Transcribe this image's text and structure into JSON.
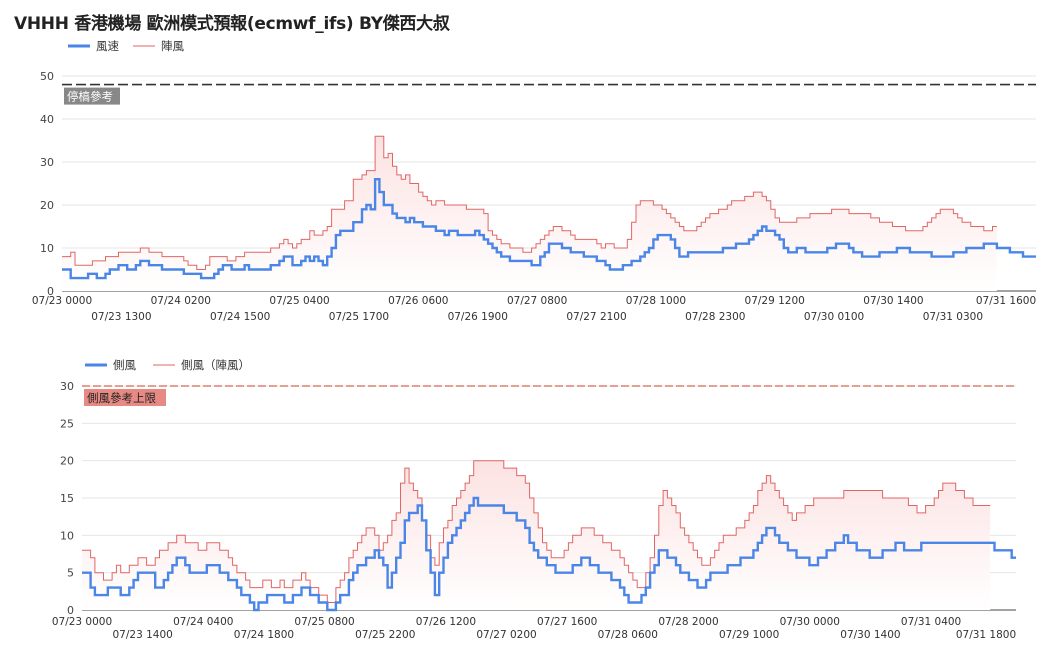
{
  "title": "VHHH 香港機場 歐洲模式預報(ecmwf_ifs)  BY傑西大叔",
  "colors": {
    "blue": "#4a86e8",
    "red": "#e06666",
    "fill": "#fce2e2",
    "dash": "#333333",
    "refLine": "#cc4125"
  },
  "chart_data": [
    {
      "type": "line",
      "legend": [
        "風速",
        "陣風"
      ],
      "ylim": [
        0,
        50
      ],
      "yticks": [
        0,
        10,
        20,
        30,
        40,
        50
      ],
      "xticks_row1": [
        "07/23 0000",
        "07/24 0200",
        "07/25 0400",
        "07/26 0600",
        "07/27 0800",
        "07/28 1000",
        "07/29 1200",
        "07/30 1400",
        "07/31 1600"
      ],
      "xticks_row2": [
        "07/23 1300",
        "07/24 1500",
        "07/25 1700",
        "07/26 1900",
        "07/27 2100",
        "07/28 2300",
        "07/30 0100",
        "07/31 0300"
      ],
      "reference": {
        "value": 48,
        "label": "停槁參考"
      },
      "series": [
        {
          "name": "風速",
          "style": "blue-step",
          "values": [
            5,
            5,
            3,
            3,
            3,
            3,
            4,
            4,
            3,
            3,
            4,
            5,
            5,
            6,
            6,
            5,
            5,
            6,
            7,
            7,
            6,
            6,
            6,
            5,
            5,
            5,
            5,
            5,
            4,
            4,
            4,
            4,
            3,
            3,
            3,
            4,
            5,
            6,
            6,
            5,
            5,
            5,
            6,
            5,
            5,
            5,
            5,
            5,
            6,
            6,
            7,
            8,
            8,
            6,
            6,
            7,
            8,
            7,
            8,
            7,
            6,
            8,
            10,
            13,
            14,
            14,
            14,
            16,
            16,
            19,
            20,
            19,
            26,
            23,
            20,
            20,
            18,
            17,
            17,
            16,
            17,
            16,
            16,
            15,
            15,
            15,
            14,
            14,
            13,
            14,
            14,
            13,
            13,
            13,
            13,
            14,
            13,
            12,
            11,
            10,
            9,
            8,
            8,
            7,
            7,
            7,
            7,
            7,
            6,
            6,
            8,
            9,
            11,
            11,
            11,
            10,
            10,
            9,
            9,
            9,
            8,
            8,
            8,
            7,
            7,
            6,
            5,
            5,
            5,
            6,
            6,
            7,
            7,
            8,
            9,
            10,
            12,
            13,
            13,
            13,
            12,
            10,
            8,
            8,
            9,
            9,
            9,
            9,
            9,
            9,
            9,
            9,
            10,
            10,
            10,
            11,
            11,
            11,
            12,
            13,
            14,
            15,
            14,
            14,
            13,
            12,
            10,
            9,
            9,
            10,
            10,
            9,
            9,
            9,
            9,
            9,
            10,
            10,
            11,
            11,
            11,
            10,
            9,
            9,
            8,
            8,
            8,
            8,
            9,
            9,
            9,
            9,
            10,
            10,
            10,
            9,
            9,
            9,
            9,
            9,
            8,
            8,
            8,
            8,
            8,
            9,
            9,
            9,
            10,
            10,
            10,
            10,
            11,
            11,
            11,
            10,
            10,
            10,
            9,
            9,
            9,
            8,
            8,
            8
          ]
        },
        {
          "name": "陣風",
          "style": "red-step-fill",
          "values": [
            8,
            8,
            9,
            6,
            6,
            6,
            6,
            7,
            7,
            7,
            8,
            8,
            8,
            9,
            9,
            9,
            9,
            9,
            10,
            10,
            9,
            9,
            9,
            8,
            8,
            8,
            8,
            8,
            7,
            6,
            6,
            5,
            5,
            6,
            8,
            8,
            8,
            8,
            7,
            7,
            8,
            8,
            9,
            9,
            9,
            9,
            9,
            9,
            10,
            10,
            11,
            12,
            11,
            10,
            11,
            12,
            12,
            14,
            13,
            13,
            14,
            15,
            19,
            19,
            19,
            21,
            21,
            26,
            26,
            27,
            28,
            28,
            36,
            36,
            31,
            32,
            29,
            27,
            26,
            27,
            25,
            25,
            23,
            22,
            21,
            20,
            21,
            21,
            20,
            20,
            20,
            20,
            20,
            19,
            19,
            19,
            19,
            18,
            14,
            13,
            12,
            11,
            11,
            10,
            10,
            10,
            9,
            9,
            10,
            11,
            12,
            13,
            14,
            15,
            15,
            14,
            14,
            13,
            12,
            12,
            12,
            12,
            12,
            11,
            10,
            11,
            11,
            10,
            10,
            10,
            12,
            16,
            20,
            21,
            21,
            21,
            20,
            20,
            19,
            18,
            17,
            16,
            15,
            14,
            14,
            14,
            15,
            16,
            17,
            18,
            18,
            19,
            19,
            20,
            21,
            21,
            21,
            22,
            22,
            23,
            23,
            22,
            21,
            19,
            17,
            16,
            16,
            16,
            16,
            17,
            17,
            17,
            18,
            18,
            18,
            18,
            18,
            19,
            19,
            19,
            19,
            18,
            18,
            18,
            18,
            18,
            17,
            17,
            16,
            16,
            16,
            15,
            15,
            15,
            14,
            14,
            14,
            14,
            15,
            16,
            17,
            18,
            19,
            19,
            19,
            18,
            17,
            16,
            16,
            15,
            15,
            15,
            14,
            14,
            15
          ]
        }
      ]
    },
    {
      "type": "line",
      "legend": [
        "側風",
        "側風（陣風）"
      ],
      "ylim": [
        0,
        30
      ],
      "yticks": [
        0,
        5,
        10,
        15,
        20,
        25,
        30
      ],
      "xticks_row1": [
        "07/23 0000",
        "07/24 0400",
        "07/25 0800",
        "07/26 1200",
        "07/27 1600",
        "07/28 2000",
        "07/30 0000",
        "07/31 0400"
      ],
      "xticks_row2": [
        "07/23 1400",
        "07/24 1800",
        "07/25 2200",
        "07/27 0200",
        "07/28 0600",
        "07/29 1000",
        "07/30 1400",
        "07/31 1800"
      ],
      "reference": {
        "value": 30,
        "label": "側風參考上限"
      },
      "series": [
        {
          "name": "側風",
          "style": "blue-step",
          "values": [
            5,
            5,
            3,
            2,
            2,
            2,
            3,
            3,
            3,
            2,
            2,
            3,
            4,
            5,
            5,
            5,
            5,
            3,
            3,
            4,
            5,
            6,
            7,
            7,
            6,
            5,
            5,
            5,
            5,
            6,
            6,
            6,
            5,
            5,
            4,
            4,
            3,
            2,
            2,
            1,
            0,
            1,
            1,
            2,
            2,
            2,
            2,
            1,
            1,
            2,
            2,
            3,
            3,
            2,
            2,
            1,
            1,
            0,
            0,
            1,
            2,
            2,
            4,
            5,
            6,
            6,
            7,
            7,
            8,
            7,
            6,
            3,
            5,
            7,
            9,
            12,
            13,
            13,
            14,
            12,
            8,
            5,
            2,
            5,
            7,
            9,
            10,
            11,
            12,
            13,
            14,
            15,
            14,
            14,
            14,
            14,
            14,
            14,
            13,
            13,
            13,
            12,
            12,
            11,
            9,
            8,
            7,
            7,
            6,
            6,
            5,
            5,
            5,
            5,
            6,
            6,
            7,
            7,
            6,
            6,
            5,
            5,
            5,
            4,
            4,
            3,
            2,
            1,
            1,
            1,
            2,
            3,
            5,
            6,
            8,
            8,
            7,
            7,
            6,
            5,
            5,
            4,
            4,
            3,
            3,
            4,
            5,
            5,
            5,
            5,
            6,
            6,
            6,
            7,
            7,
            7,
            8,
            9,
            10,
            11,
            11,
            10,
            9,
            9,
            8,
            8,
            7,
            7,
            7,
            6,
            6,
            7,
            7,
            8,
            8,
            9,
            9,
            10,
            9,
            9,
            8,
            8,
            8,
            7,
            7,
            7,
            8,
            8,
            8,
            9,
            9,
            8,
            8,
            8,
            8,
            9,
            9,
            9,
            9,
            9,
            9,
            9,
            9,
            9,
            9,
            9,
            9,
            9,
            9,
            9,
            9,
            9,
            8,
            8,
            8,
            8,
            7
          ]
        },
        {
          "name": "側風（陣風）",
          "style": "red-step-fill",
          "values": [
            8,
            8,
            7,
            5,
            5,
            4,
            4,
            5,
            6,
            5,
            5,
            6,
            6,
            7,
            7,
            6,
            6,
            7,
            8,
            8,
            9,
            9,
            10,
            10,
            9,
            9,
            9,
            8,
            8,
            9,
            9,
            9,
            8,
            8,
            7,
            6,
            5,
            5,
            4,
            3,
            3,
            3,
            4,
            4,
            3,
            3,
            4,
            3,
            3,
            4,
            4,
            5,
            4,
            3,
            3,
            2,
            2,
            1,
            1,
            3,
            4,
            5,
            7,
            8,
            9,
            10,
            11,
            11,
            10,
            8,
            9,
            10,
            12,
            13,
            17,
            19,
            17,
            16,
            15,
            12,
            10,
            7,
            6,
            9,
            11,
            12,
            14,
            15,
            16,
            17,
            18,
            20,
            20,
            20,
            20,
            20,
            20,
            20,
            19,
            19,
            19,
            18,
            18,
            17,
            15,
            13,
            11,
            9,
            8,
            7,
            7,
            7,
            8,
            9,
            10,
            10,
            11,
            11,
            11,
            10,
            10,
            9,
            9,
            8,
            8,
            7,
            6,
            5,
            4,
            3,
            3,
            5,
            7,
            10,
            14,
            16,
            15,
            14,
            13,
            11,
            10,
            9,
            8,
            7,
            6,
            6,
            7,
            8,
            9,
            10,
            10,
            10,
            11,
            11,
            12,
            13,
            14,
            16,
            17,
            18,
            17,
            16,
            15,
            14,
            13,
            12,
            13,
            13,
            14,
            14,
            15,
            15,
            15,
            15,
            15,
            15,
            15,
            16,
            16,
            16,
            16,
            16,
            16,
            16,
            16,
            16,
            15,
            15,
            15,
            15,
            15,
            15,
            14,
            14,
            13,
            13,
            14,
            14,
            15,
            16,
            17,
            17,
            17,
            16,
            16,
            15,
            15,
            14,
            14,
            14,
            14
          ]
        }
      ]
    }
  ]
}
